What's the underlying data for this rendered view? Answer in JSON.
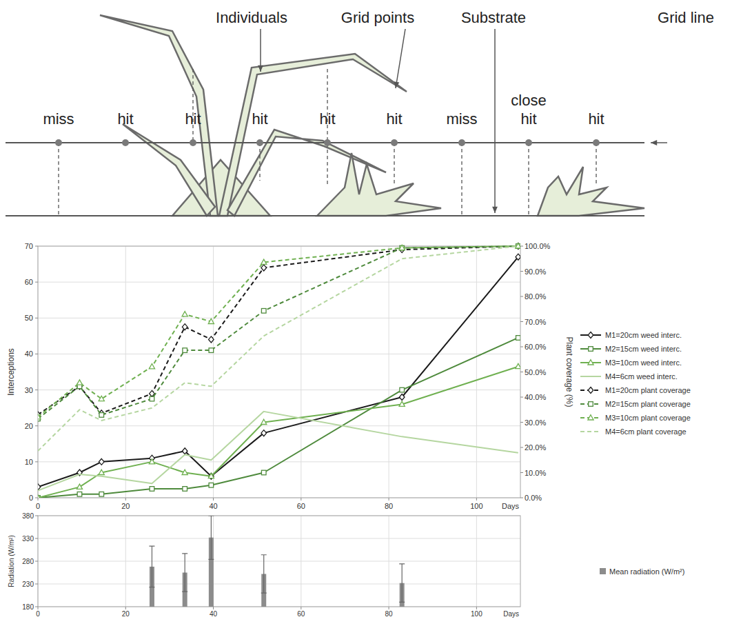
{
  "diagram": {
    "labels": {
      "individuals": "Individuals",
      "grid_points": "Grid points",
      "substrate": "Substrate",
      "grid_line": "Grid line"
    },
    "points": [
      "miss",
      "hit",
      "hit",
      "hit",
      "hit",
      "hit",
      "miss",
      "close hit",
      "hit"
    ]
  },
  "chart_data": [
    {
      "type": "line",
      "x_label": "Days",
      "y_label": "Interceptions",
      "y2_label": "Plant coverage (%)",
      "x": [
        0,
        9.5,
        14.5,
        26,
        33.5,
        39.5,
        51.5,
        83,
        109.5
      ],
      "xlim": [
        0,
        110
      ],
      "xticks": [
        0,
        20,
        40,
        60,
        80,
        100
      ],
      "ylim": [
        0,
        70
      ],
      "yticks": [
        0,
        10,
        20,
        30,
        40,
        50,
        60,
        70
      ],
      "y2lim": [
        0,
        100
      ],
      "y2ticks": [
        {
          "value": 0,
          "label": "0.0%"
        },
        {
          "value": 10,
          "label": "10.0%"
        },
        {
          "value": 20,
          "label": "20.0%"
        },
        {
          "value": 30,
          "label": "30.0%"
        },
        {
          "value": 40,
          "label": "40.0%"
        },
        {
          "value": 50,
          "label": "50.0%"
        },
        {
          "value": 60,
          "label": "60.0%"
        },
        {
          "value": 70,
          "label": "70.0%"
        },
        {
          "value": 80,
          "label": "80.0%"
        },
        {
          "value": 90,
          "label": "90.0%"
        },
        {
          "value": 100,
          "label": "100.0%"
        }
      ],
      "grid": true,
      "legend": "right",
      "series": [
        {
          "name": "M1=20cm weed interc.",
          "color": "#1a1a1a",
          "marker": "diamond",
          "line_style": "solid",
          "values": [
            3,
            7,
            10,
            11,
            13,
            6,
            18,
            28,
            67
          ]
        },
        {
          "name": "M2=15cm weed interc.",
          "color": "#4e8a3c",
          "marker": "square",
          "line_style": "solid",
          "values": [
            0,
            1,
            1,
            2.5,
            2.5,
            3.5,
            7,
            30,
            44.5
          ]
        },
        {
          "name": "M3=10cm weed interc.",
          "color": "#6fb050",
          "marker": "triangle",
          "line_style": "solid",
          "values": [
            0,
            3,
            7,
            10,
            7,
            6,
            21,
            26,
            36.5
          ]
        },
        {
          "name": "M4=6cm weed interc.",
          "color": "#b5d6a0",
          "marker": "none",
          "line_style": "solid",
          "values": [
            2,
            6.5,
            6,
            4,
            12,
            10.5,
            24,
            17,
            12.5
          ]
        },
        {
          "name": "M1=20cm plant coverage",
          "color": "#1a1a1a",
          "marker": "diamond",
          "line_style": "dashed",
          "axis": "y2",
          "values": [
            33,
            44.3,
            33.6,
            41.4,
            67.9,
            62.9,
            91.4,
            98.6,
            100
          ]
        },
        {
          "name": "M2=15cm plant coverage",
          "color": "#4e8a3c",
          "marker": "square",
          "line_style": "dashed",
          "axis": "y2",
          "values": [
            31.4,
            44.3,
            32.9,
            39.3,
            58.6,
            58.6,
            74.3,
            99.3,
            100
          ]
        },
        {
          "name": "M3=10cm plant coverage",
          "color": "#6fb050",
          "marker": "triangle",
          "line_style": "dashed",
          "axis": "y2",
          "values": [
            32.1,
            45.7,
            39.3,
            52.1,
            72.9,
            70,
            93.6,
            99.3,
            100
          ]
        },
        {
          "name": "M4=6cm plant coverage",
          "color": "#b5d6a0",
          "marker": "none",
          "line_style": "dashed",
          "axis": "y2",
          "values": [
            18.6,
            35,
            30.7,
            35.7,
            45.7,
            44.3,
            64.3,
            95,
            100
          ]
        }
      ]
    },
    {
      "type": "bar",
      "x_label": "Days",
      "y_label": "Radiation (W/m²)",
      "x": [
        26,
        33.5,
        39.5,
        51.5,
        83
      ],
      "xlim": [
        0,
        110
      ],
      "xticks": [
        0,
        20,
        40,
        60,
        80,
        100
      ],
      "ylim": [
        180,
        380
      ],
      "yticks": [
        180,
        230,
        280,
        330,
        380
      ],
      "grid": true,
      "legend": "right",
      "series": [
        {
          "name": "Mean radiation (W/m²)",
          "color": "#8c8c8c",
          "values": [
            268,
            255,
            332,
            252,
            232
          ],
          "errors": [
            45,
            42,
            48,
            42,
            42
          ]
        }
      ]
    }
  ]
}
